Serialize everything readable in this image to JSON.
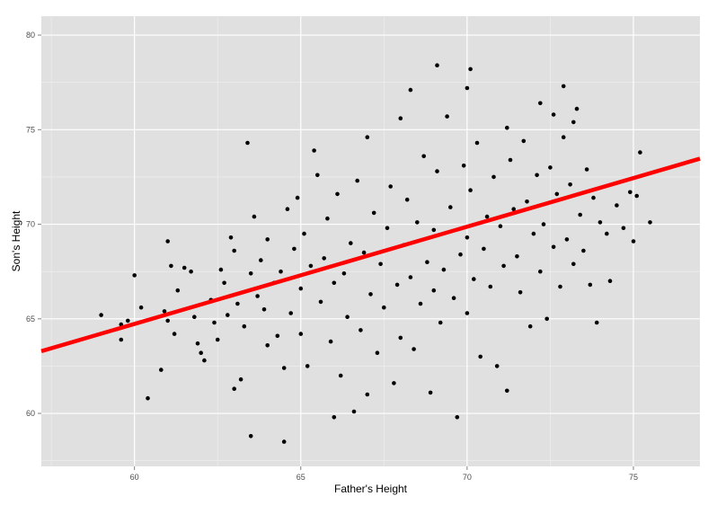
{
  "chart_data": {
    "type": "scatter",
    "xlabel": "Father's Height",
    "ylabel": "Son's Height",
    "xlim": [
      57.2,
      77.0
    ],
    "ylim": [
      57.2,
      81.0
    ],
    "x_ticks": [
      60,
      65,
      70,
      75
    ],
    "y_ticks": [
      60,
      65,
      70,
      75,
      80
    ],
    "grid": true,
    "background_color": "#e0e0e0",
    "grid_color": "#ffffff",
    "point_color": "#000000",
    "fit_line": {
      "color": "#ff0000",
      "intercept": 33.89,
      "slope": 0.514
    },
    "points": [
      [
        59.0,
        65.2
      ],
      [
        59.6,
        64.7
      ],
      [
        59.8,
        64.9
      ],
      [
        59.6,
        63.9
      ],
      [
        60.0,
        67.3
      ],
      [
        60.2,
        65.6
      ],
      [
        60.4,
        60.8
      ],
      [
        60.8,
        62.3
      ],
      [
        60.9,
        65.4
      ],
      [
        61.0,
        64.9
      ],
      [
        61.0,
        69.1
      ],
      [
        61.1,
        67.8
      ],
      [
        61.2,
        64.2
      ],
      [
        61.3,
        66.5
      ],
      [
        61.5,
        67.7
      ],
      [
        61.7,
        67.5
      ],
      [
        61.8,
        65.1
      ],
      [
        61.9,
        63.7
      ],
      [
        62.0,
        63.2
      ],
      [
        62.1,
        62.8
      ],
      [
        62.3,
        66.0
      ],
      [
        62.4,
        64.8
      ],
      [
        62.5,
        63.9
      ],
      [
        62.6,
        67.6
      ],
      [
        62.7,
        66.9
      ],
      [
        62.8,
        65.2
      ],
      [
        62.9,
        69.3
      ],
      [
        63.0,
        61.3
      ],
      [
        63.0,
        68.6
      ],
      [
        63.1,
        65.8
      ],
      [
        63.2,
        61.8
      ],
      [
        63.3,
        64.6
      ],
      [
        63.4,
        74.3
      ],
      [
        63.5,
        58.8
      ],
      [
        63.5,
        67.4
      ],
      [
        63.6,
        70.4
      ],
      [
        63.7,
        66.2
      ],
      [
        63.8,
        68.1
      ],
      [
        63.9,
        65.5
      ],
      [
        64.0,
        63.6
      ],
      [
        64.0,
        69.2
      ],
      [
        64.2,
        66.9
      ],
      [
        64.3,
        64.1
      ],
      [
        64.4,
        67.5
      ],
      [
        64.5,
        62.4
      ],
      [
        64.5,
        58.5
      ],
      [
        64.6,
        70.8
      ],
      [
        64.7,
        65.3
      ],
      [
        64.8,
        68.7
      ],
      [
        64.9,
        71.4
      ],
      [
        65.0,
        66.6
      ],
      [
        65.0,
        64.2
      ],
      [
        65.1,
        69.5
      ],
      [
        65.2,
        62.5
      ],
      [
        65.3,
        67.8
      ],
      [
        65.4,
        73.9
      ],
      [
        65.5,
        72.6
      ],
      [
        65.6,
        65.9
      ],
      [
        65.7,
        68.2
      ],
      [
        65.8,
        70.3
      ],
      [
        65.9,
        63.8
      ],
      [
        66.0,
        66.9
      ],
      [
        66.0,
        59.8
      ],
      [
        66.1,
        71.6
      ],
      [
        66.2,
        62.0
      ],
      [
        66.3,
        67.4
      ],
      [
        66.4,
        65.1
      ],
      [
        66.5,
        69.0
      ],
      [
        66.6,
        60.1
      ],
      [
        66.7,
        72.3
      ],
      [
        66.8,
        64.4
      ],
      [
        66.9,
        68.5
      ],
      [
        67.0,
        74.6
      ],
      [
        67.0,
        61.0
      ],
      [
        67.1,
        66.3
      ],
      [
        67.2,
        70.6
      ],
      [
        67.3,
        63.2
      ],
      [
        67.4,
        67.9
      ],
      [
        67.5,
        65.6
      ],
      [
        67.6,
        69.8
      ],
      [
        67.7,
        72.0
      ],
      [
        67.8,
        61.6
      ],
      [
        67.9,
        66.8
      ],
      [
        68.0,
        64.0
      ],
      [
        68.1,
        68.9
      ],
      [
        68.2,
        71.3
      ],
      [
        68.3,
        67.2
      ],
      [
        68.4,
        63.4
      ],
      [
        68.5,
        70.1
      ],
      [
        68.6,
        65.8
      ],
      [
        68.7,
        73.6
      ],
      [
        68.8,
        68.0
      ],
      [
        68.9,
        61.1
      ],
      [
        69.0,
        66.5
      ],
      [
        69.0,
        69.7
      ],
      [
        69.1,
        72.8
      ],
      [
        69.2,
        64.8
      ],
      [
        69.3,
        67.6
      ],
      [
        69.4,
        75.7
      ],
      [
        69.5,
        70.9
      ],
      [
        69.6,
        66.1
      ],
      [
        69.7,
        59.8
      ],
      [
        69.8,
        68.4
      ],
      [
        69.9,
        73.1
      ],
      [
        70.0,
        65.3
      ],
      [
        70.0,
        69.3
      ],
      [
        70.1,
        71.8
      ],
      [
        70.2,
        67.1
      ],
      [
        70.3,
        74.3
      ],
      [
        70.4,
        63.0
      ],
      [
        70.5,
        68.7
      ],
      [
        70.6,
        70.4
      ],
      [
        70.7,
        66.7
      ],
      [
        70.8,
        72.5
      ],
      [
        70.9,
        62.5
      ],
      [
        71.0,
        69.9
      ],
      [
        71.1,
        67.8
      ],
      [
        71.2,
        61.2
      ],
      [
        71.3,
        73.4
      ],
      [
        71.4,
        70.8
      ],
      [
        71.5,
        68.3
      ],
      [
        71.6,
        66.4
      ],
      [
        71.7,
        74.4
      ],
      [
        71.8,
        71.2
      ],
      [
        71.9,
        64.6
      ],
      [
        72.0,
        69.5
      ],
      [
        72.1,
        72.6
      ],
      [
        72.2,
        67.5
      ],
      [
        72.3,
        70.0
      ],
      [
        72.4,
        65.0
      ],
      [
        72.5,
        73.0
      ],
      [
        72.6,
        68.8
      ],
      [
        72.7,
        71.6
      ],
      [
        72.8,
        66.7
      ],
      [
        72.9,
        74.6
      ],
      [
        73.0,
        69.2
      ],
      [
        73.1,
        72.1
      ],
      [
        73.2,
        67.9
      ],
      [
        73.3,
        76.1
      ],
      [
        73.4,
        70.5
      ],
      [
        73.5,
        68.6
      ],
      [
        73.6,
        72.9
      ],
      [
        73.7,
        66.8
      ],
      [
        73.8,
        71.4
      ],
      [
        73.9,
        64.8
      ],
      [
        74.0,
        70.1
      ],
      [
        74.2,
        69.5
      ],
      [
        74.3,
        67.0
      ],
      [
        74.5,
        71.0
      ],
      [
        74.7,
        69.8
      ],
      [
        74.9,
        71.7
      ],
      [
        75.0,
        69.1
      ],
      [
        75.1,
        71.5
      ],
      [
        75.2,
        73.8
      ],
      [
        75.5,
        70.1
      ],
      [
        68.3,
        77.1
      ],
      [
        69.1,
        78.4
      ],
      [
        70.1,
        78.2
      ],
      [
        70.0,
        77.2
      ],
      [
        72.9,
        77.3
      ],
      [
        73.2,
        75.4
      ],
      [
        72.6,
        75.8
      ],
      [
        72.2,
        76.4
      ],
      [
        71.2,
        75.1
      ],
      [
        68.0,
        75.6
      ]
    ]
  }
}
